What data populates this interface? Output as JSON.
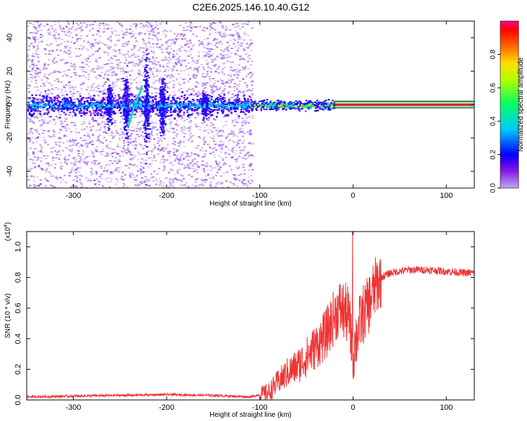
{
  "title": "C2E6.2025.146.10.40.G12",
  "chart_data": [
    {
      "type": "heatmap",
      "xlabel": "Height of straight line (km)",
      "ylabel": "Frequency (Hz)",
      "xlim": [
        -350,
        130
      ],
      "ylim": [
        -50,
        50
      ],
      "xticks": [
        -300,
        -200,
        -100,
        0,
        100
      ],
      "yticks": [
        -40,
        -20,
        0,
        20,
        40
      ],
      "colorbar": {
        "label": "Normalized spectral amplitude",
        "range": [
          0,
          1
        ],
        "ticks": [
          "0.0",
          "0.2",
          "0.4",
          "0.6",
          "0.8"
        ],
        "tick_values": [
          0.0,
          0.2,
          0.4,
          0.6,
          0.8
        ]
      },
      "features": {
        "noise_region_x": [
          -350,
          -108
        ],
        "noise_band_halfwidth_hz": 10,
        "core_band_halfwidth_hz": 5,
        "tone_start_x": -20,
        "tone_frequency_hz": 0,
        "tone_halfwidth_hz": 2
      }
    },
    {
      "type": "line",
      "xlabel": "Height of straight line (km)",
      "ylabel": "SNR (10 * v/v)",
      "scale_label": "(x10",
      "scale_exp": "4",
      "scale_suffix": ")",
      "xlim": [
        -350,
        130
      ],
      "ylim": [
        0,
        1.1
      ],
      "xticks": [
        -300,
        -200,
        -100,
        0,
        100
      ],
      "yticks": [
        0.0,
        0.2,
        0.4,
        0.6,
        0.8,
        1.0
      ],
      "ytick_labels": [
        "0.0",
        "0.2",
        "0.4",
        "0.6",
        "0.8",
        "1.0"
      ],
      "series": [
        {
          "color": "#ee3333",
          "x": [
            -350,
            -300,
            -250,
            -200,
            -150,
            -110,
            -90,
            -80,
            -70,
            -60,
            -50,
            -40,
            -30,
            -25,
            -20,
            -15,
            -10,
            -5,
            0,
            5,
            10,
            15,
            20,
            25,
            30,
            40,
            50,
            60,
            80,
            100,
            120,
            130
          ],
          "y": [
            0.02,
            0.025,
            0.03,
            0.035,
            0.03,
            0.02,
            0.05,
            0.12,
            0.18,
            0.22,
            0.28,
            0.35,
            0.42,
            0.48,
            0.55,
            0.6,
            0.58,
            0.55,
            0.3,
            0.45,
            0.55,
            0.6,
            0.68,
            0.75,
            0.8,
            0.83,
            0.84,
            0.85,
            0.85,
            0.84,
            0.83,
            0.83
          ]
        }
      ]
    }
  ]
}
